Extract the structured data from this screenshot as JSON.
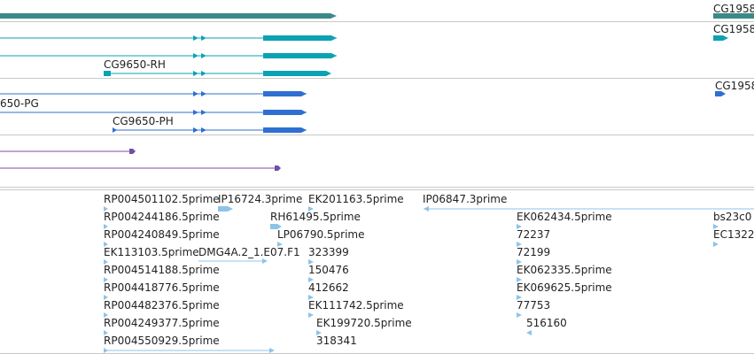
{
  "colors": {
    "gene_dark": "#3a8a88",
    "transcript_teal": "#0aa3b4",
    "transcript_blue": "#2f6fd0",
    "purple": "#7050a8",
    "est_blue": "#8cc4e8",
    "separator": "#c8c8c8"
  },
  "genes": {
    "cg9650_rh": "CG9650-RH",
    "cg9650_pg": "650-PG",
    "cg9650_ph": "CG9650-PH",
    "cg1958_a": "CG1958",
    "cg1958_b": "CG1958",
    "cg1958_c": "CG1958"
  },
  "ests": {
    "col1": [
      "RP004501102.5prime",
      "RP004244186.5prime",
      "RP004240849.5prime",
      "EK113103.5prime",
      "RP004514188.5prime",
      "RP004418776.5prime",
      "RP004482376.5prime",
      "RP004249377.5prime",
      "RP004550929.5prime"
    ],
    "ip16724": "IP16724.3prime",
    "dmg4a": "DMG4A.2_1.E07.F1",
    "ek201163": "EK201163.5prime",
    "rh61495": "RH61495.5prime",
    "lp06790": "LP06790.5prime",
    "col3": [
      "323399",
      "150476",
      "412662",
      "EK111742.5prime"
    ],
    "ek199720": "EK199720.5prime",
    "n318341": "318341",
    "ip06847": "IP06847.3prime",
    "col5": [
      "EK062434.5prime",
      "72237",
      "72199",
      "EK062335.5prime",
      "EK069625.5prime",
      "77753"
    ],
    "n516160": "516160",
    "bs23c": "bs23c0",
    "ec1322": "EC1322"
  }
}
